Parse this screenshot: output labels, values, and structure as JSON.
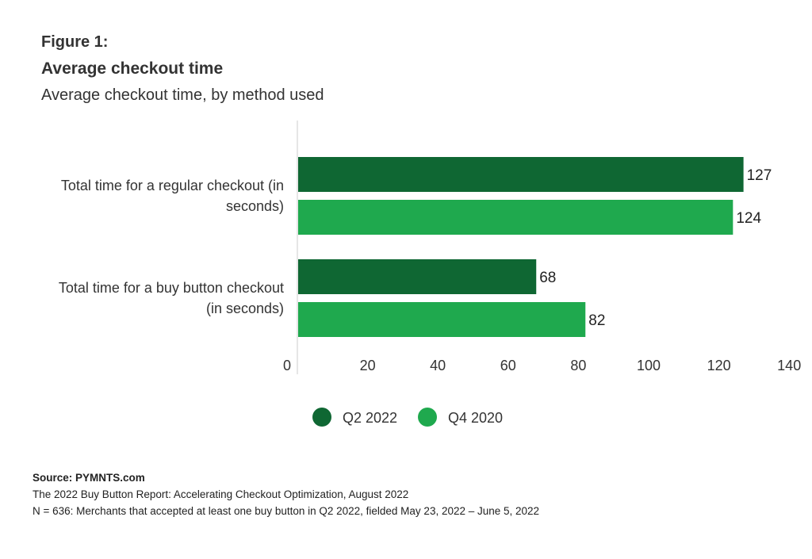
{
  "figure": {
    "label": "Figure 1:",
    "title": "Average checkout time",
    "subtitle": "Average checkout time, by method used"
  },
  "chart_data": {
    "type": "bar",
    "orientation": "horizontal",
    "categories": [
      [
        "Total time for a regular checkout (in",
        "seconds)"
      ],
      [
        "Total time for a buy button checkout",
        "(in seconds)"
      ]
    ],
    "series": [
      {
        "name": "Q2 2022",
        "color": "#0f6733",
        "values": [
          127,
          68
        ]
      },
      {
        "name": "Q4 2020",
        "color": "#1fa94e",
        "values": [
          124,
          82
        ]
      }
    ],
    "xlim": [
      0,
      140
    ],
    "xticks": [
      0,
      20,
      40,
      60,
      80,
      100,
      120,
      140
    ],
    "grid": false,
    "legend": "bottom-center",
    "data_labels": true
  },
  "footer": {
    "source": "Source: PYMNTS.com",
    "report": "The 2022 Buy Button Report: Accelerating Checkout Optimization, August 2022",
    "note": "N = 636: Merchants that accepted at least one buy button in Q2 2022, fielded May 23, 2022 – June 5, 2022"
  }
}
